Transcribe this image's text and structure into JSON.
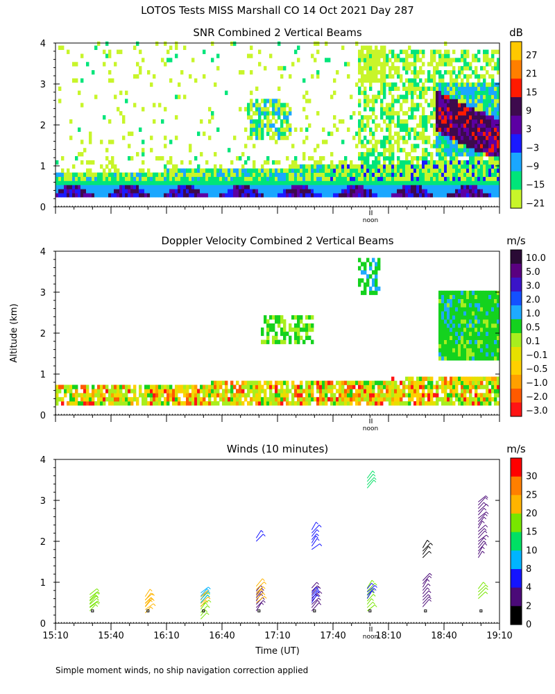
{
  "page": {
    "title": "LOTOS Tests MISS Marshall CO  14 Oct 2021 Day 287",
    "ylabel": "Altitude (km)",
    "xlabel": "Time (UT)",
    "noon_label": "noon",
    "footnote": "Simple moment winds, no ship navigation correction applied"
  },
  "chart_data": [
    {
      "type": "heatmap",
      "title": "SNR Combined 2 Vertical Beams",
      "unit": "dB",
      "ylim": [
        0,
        4
      ],
      "yticks": [
        "0",
        "1",
        "2",
        "3",
        "4"
      ],
      "colorbar": {
        "labels": [
          "27",
          "21",
          "15",
          "9",
          "3",
          "−3",
          "−9",
          "−15",
          "−21"
        ],
        "colors": [
          "#ffc800",
          "#ff7f00",
          "#ff1a00",
          "#3d0a4d",
          "#5c00a3",
          "#1a1aff",
          "#1aa7ff",
          "#00e57a",
          "#c8f52a"
        ]
      }
    },
    {
      "type": "heatmap",
      "title": "Doppler Velocity Combined 2 Vertical Beams",
      "unit": "m/s",
      "ylim": [
        0,
        4
      ],
      "yticks": [
        "0",
        "1",
        "2",
        "3",
        "4"
      ],
      "colorbar": {
        "labels": [
          "10.0",
          "5.0",
          "3.0",
          "2.0",
          "1.0",
          "0.5",
          "0.1",
          "−0.1",
          "−0.5",
          "−1.0",
          "−2.0",
          "−3.0"
        ],
        "colors": [
          "#2a0a35",
          "#5a0080",
          "#3a14c8",
          "#1450ff",
          "#1eaaff",
          "#14d21e",
          "#a8ee1e",
          "#e6e000",
          "#ffd000",
          "#ffa000",
          "#ff5a00",
          "#ff1414"
        ]
      }
    },
    {
      "type": "scatter",
      "title": "Winds (10 minutes)",
      "unit": "m/s",
      "ylim": [
        0,
        4
      ],
      "yticks": [
        "0",
        "1",
        "2",
        "3",
        "4"
      ],
      "xticks": [
        "15:10",
        "15:40",
        "16:10",
        "16:40",
        "17:10",
        "17:40",
        "18:10",
        "18:40",
        "19:10"
      ],
      "colorbar": {
        "labels": [
          "30",
          "25",
          "20",
          "15",
          "10",
          "8",
          "4",
          "2",
          "0"
        ],
        "colors": [
          "#ff0000",
          "#ff7f00",
          "#ffb400",
          "#78e600",
          "#00e064",
          "#00b4ff",
          "#1414ff",
          "#4b0a78",
          "#000000"
        ]
      },
      "profile_times": [
        "15:30",
        "16:00",
        "16:30",
        "17:00",
        "17:30",
        "18:00",
        "18:30",
        "19:00"
      ]
    }
  ]
}
